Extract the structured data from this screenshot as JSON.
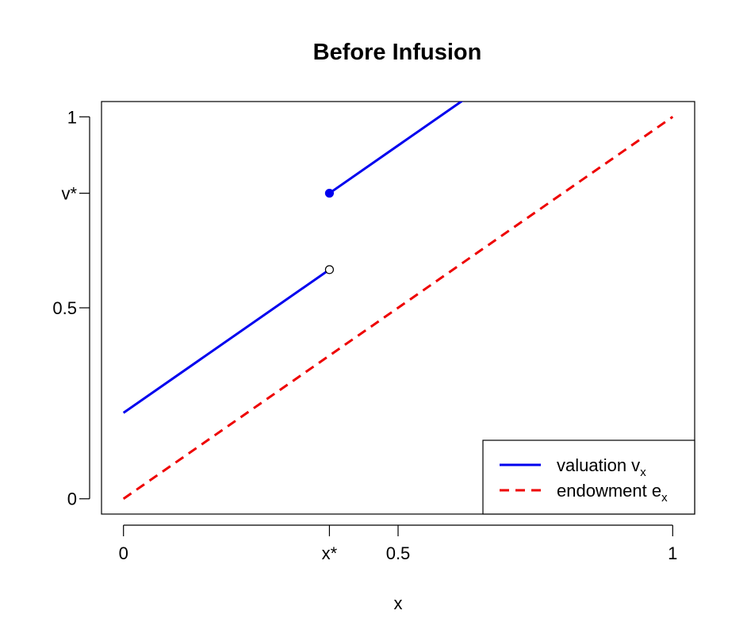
{
  "chart_data": {
    "type": "line",
    "title": "Before Infusion",
    "xlabel": "x",
    "ylabel": "",
    "xlim": [
      -0.04,
      1.04
    ],
    "ylim": [
      -0.04,
      1.04
    ],
    "x_ticks": [
      {
        "value": 0,
        "label": "0"
      },
      {
        "value": 0.375,
        "label": "x*"
      },
      {
        "value": 0.5,
        "label": "0.5"
      },
      {
        "value": 1,
        "label": "1"
      }
    ],
    "y_ticks": [
      {
        "value": 0,
        "label": "0"
      },
      {
        "value": 0.5,
        "label": "0.5"
      },
      {
        "value": 0.8,
        "label": "v*"
      },
      {
        "value": 1,
        "label": "1"
      }
    ],
    "series": [
      {
        "name": "valuation",
        "name_sub": "x",
        "color": "#0000ee",
        "style": "solid",
        "segments": [
          {
            "x": [
              0,
              0.375
            ],
            "y": [
              0.225,
              0.6
            ]
          },
          {
            "x": [
              0.375,
              0.65
            ],
            "y": [
              0.8,
              1.075
            ]
          }
        ],
        "markers": [
          {
            "x": 0.375,
            "y": 0.6,
            "fill": "open"
          },
          {
            "x": 0.375,
            "y": 0.8,
            "fill": "filled"
          }
        ]
      },
      {
        "name": "endowment",
        "name_sub": "x",
        "color": "#ee0000",
        "style": "dashed",
        "segments": [
          {
            "x": [
              0,
              1
            ],
            "y": [
              0,
              1
            ]
          }
        ]
      }
    ],
    "legend": {
      "position": "bottom-right",
      "entries": [
        {
          "text": "valuation v",
          "sub": "x",
          "color": "#0000ee",
          "style": "solid"
        },
        {
          "text": "endowment e",
          "sub": "x",
          "color": "#ee0000",
          "style": "dashed"
        }
      ]
    },
    "grid": false
  }
}
